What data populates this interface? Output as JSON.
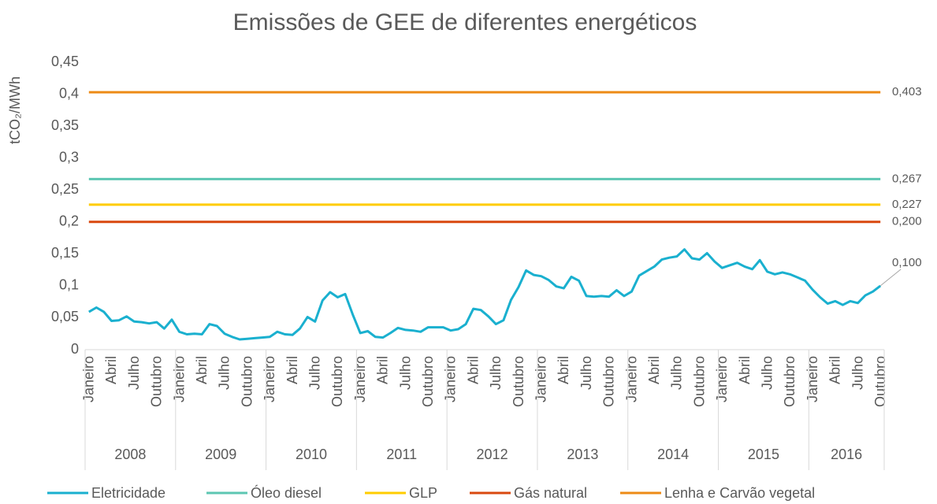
{
  "chart_data": {
    "type": "line",
    "title": "Emissões de GEE de diferentes energéticos",
    "y_label": "tCO₂/MWh",
    "categories": [
      "Janeiro",
      null,
      null,
      "Abril",
      null,
      null,
      "Julho",
      null,
      null,
      "Outubro",
      null,
      null,
      "Janeiro",
      null,
      null,
      "Abril",
      null,
      null,
      "Julho",
      null,
      null,
      "Outubro",
      null,
      null,
      "Janeiro",
      null,
      null,
      "Abril",
      null,
      null,
      "Julho",
      null,
      null,
      "Outubro",
      null,
      null,
      "Janeiro",
      null,
      null,
      "Abril",
      null,
      null,
      "Julho",
      null,
      null,
      "Outubro",
      null,
      null,
      "Janeiro",
      null,
      null,
      "Abril",
      null,
      null,
      "Julho",
      null,
      null,
      "Outubro",
      null,
      null,
      "Janeiro",
      null,
      null,
      "Abril",
      null,
      null,
      "Julho",
      null,
      null,
      "Outubro",
      null,
      null,
      "Janeiro",
      null,
      null,
      "Abril",
      null,
      null,
      "Julho",
      null,
      null,
      "Outubro",
      null,
      null,
      "Janeiro",
      null,
      null,
      "Abril",
      null,
      null,
      "Julho",
      null,
      null,
      "Outubro",
      null,
      null,
      "Janeiro",
      null,
      null,
      "Abril",
      null,
      null,
      "Julho",
      null,
      null,
      "Outubro"
    ],
    "years": [
      "2008",
      "2009",
      "2010",
      "2011",
      "2012",
      "2013",
      "2014",
      "2015",
      "2016"
    ],
    "ylim": [
      0,
      0.45
    ],
    "yticks": [
      0,
      {
        "value": 0.05,
        "label": "0,05"
      },
      {
        "value": 0.1,
        "label": "0,1"
      },
      {
        "value": 0.15,
        "label": "0,15"
      },
      {
        "value": 0.2,
        "label": "0,2"
      },
      {
        "value": 0.25,
        "label": "0,25"
      },
      {
        "value": 0.3,
        "label": "0,3"
      },
      {
        "value": 0.35,
        "label": "0,35"
      },
      {
        "value": 0.4,
        "label": "0,4"
      },
      {
        "value": 0.45,
        "label": "0,45"
      }
    ],
    "legend": "bottom",
    "series": [
      {
        "name": "Eletricidade",
        "color": "#1ab0cf",
        "last_label": "0,100",
        "values": [
          0.059,
          0.066,
          0.059,
          0.045,
          0.046,
          0.052,
          0.044,
          0.043,
          0.041,
          0.043,
          0.033,
          0.047,
          0.028,
          0.024,
          0.025,
          0.024,
          0.04,
          0.037,
          0.025,
          0.02,
          0.016,
          0.017,
          0.018,
          0.019,
          0.02,
          0.028,
          0.024,
          0.023,
          0.033,
          0.051,
          0.044,
          0.077,
          0.09,
          0.082,
          0.087,
          0.055,
          0.026,
          0.029,
          0.02,
          0.019,
          0.026,
          0.034,
          0.031,
          0.03,
          0.028,
          0.035,
          0.035,
          0.035,
          0.03,
          0.032,
          0.04,
          0.064,
          0.062,
          0.052,
          0.04,
          0.046,
          0.078,
          0.098,
          0.124,
          0.117,
          0.115,
          0.109,
          0.099,
          0.096,
          0.114,
          0.108,
          0.084,
          0.083,
          0.084,
          0.083,
          0.093,
          0.084,
          0.091,
          0.116,
          0.123,
          0.13,
          0.141,
          0.144,
          0.146,
          0.157,
          0.143,
          0.141,
          0.151,
          0.138,
          0.128,
          0.132,
          0.136,
          0.13,
          0.126,
          0.14,
          0.122,
          0.118,
          0.121,
          0.118,
          0.113,
          0.108,
          0.094,
          0.082,
          0.072,
          0.076,
          0.07,
          0.076,
          0.073,
          0.085,
          0.091,
          0.1
        ]
      },
      {
        "name": "Óleo diesel",
        "color": "#5cc6b2",
        "last_label": "0,267",
        "values": [
          0.267,
          0.267,
          0.267,
          0.267,
          0.267,
          0.267,
          0.267,
          0.267,
          0.267,
          0.267,
          0.267,
          0.267,
          0.267,
          0.267,
          0.267,
          0.267,
          0.267,
          0.267,
          0.267,
          0.267,
          0.267,
          0.267,
          0.267,
          0.267,
          0.267,
          0.267,
          0.267,
          0.267,
          0.267,
          0.267,
          0.267,
          0.267,
          0.267,
          0.267,
          0.267,
          0.267,
          0.267,
          0.267,
          0.267,
          0.267,
          0.267,
          0.267,
          0.267,
          0.267,
          0.267,
          0.267,
          0.267,
          0.267,
          0.267,
          0.267,
          0.267,
          0.267,
          0.267,
          0.267,
          0.267,
          0.267,
          0.267,
          0.267,
          0.267,
          0.267,
          0.267,
          0.267,
          0.267,
          0.267,
          0.267,
          0.267,
          0.267,
          0.267,
          0.267,
          0.267,
          0.267,
          0.267,
          0.267,
          0.267,
          0.267,
          0.267,
          0.267,
          0.267,
          0.267,
          0.267,
          0.267,
          0.267,
          0.267,
          0.267,
          0.267,
          0.267,
          0.267,
          0.267,
          0.267,
          0.267,
          0.267,
          0.267,
          0.267,
          0.267,
          0.267,
          0.267,
          0.267,
          0.267,
          0.267,
          0.267,
          0.267,
          0.267,
          0.267,
          0.267,
          0.267,
          0.267
        ]
      },
      {
        "name": "GLP",
        "color": "#ffcc00",
        "last_label": "0,227",
        "values": [
          0.227,
          0.227,
          0.227,
          0.227,
          0.227,
          0.227,
          0.227,
          0.227,
          0.227,
          0.227,
          0.227,
          0.227,
          0.227,
          0.227,
          0.227,
          0.227,
          0.227,
          0.227,
          0.227,
          0.227,
          0.227,
          0.227,
          0.227,
          0.227,
          0.227,
          0.227,
          0.227,
          0.227,
          0.227,
          0.227,
          0.227,
          0.227,
          0.227,
          0.227,
          0.227,
          0.227,
          0.227,
          0.227,
          0.227,
          0.227,
          0.227,
          0.227,
          0.227,
          0.227,
          0.227,
          0.227,
          0.227,
          0.227,
          0.227,
          0.227,
          0.227,
          0.227,
          0.227,
          0.227,
          0.227,
          0.227,
          0.227,
          0.227,
          0.227,
          0.227,
          0.227,
          0.227,
          0.227,
          0.227,
          0.227,
          0.227,
          0.227,
          0.227,
          0.227,
          0.227,
          0.227,
          0.227,
          0.227,
          0.227,
          0.227,
          0.227,
          0.227,
          0.227,
          0.227,
          0.227,
          0.227,
          0.227,
          0.227,
          0.227,
          0.227,
          0.227,
          0.227,
          0.227,
          0.227,
          0.227,
          0.227,
          0.227,
          0.227,
          0.227,
          0.227,
          0.227,
          0.227,
          0.227,
          0.227,
          0.227,
          0.227,
          0.227,
          0.227,
          0.227,
          0.227,
          0.227
        ]
      },
      {
        "name": "Gás natural",
        "color": "#d9480f",
        "last_label": "0,200",
        "values": [
          0.2,
          0.2,
          0.2,
          0.2,
          0.2,
          0.2,
          0.2,
          0.2,
          0.2,
          0.2,
          0.2,
          0.2,
          0.2,
          0.2,
          0.2,
          0.2,
          0.2,
          0.2,
          0.2,
          0.2,
          0.2,
          0.2,
          0.2,
          0.2,
          0.2,
          0.2,
          0.2,
          0.2,
          0.2,
          0.2,
          0.2,
          0.2,
          0.2,
          0.2,
          0.2,
          0.2,
          0.2,
          0.2,
          0.2,
          0.2,
          0.2,
          0.2,
          0.2,
          0.2,
          0.2,
          0.2,
          0.2,
          0.2,
          0.2,
          0.2,
          0.2,
          0.2,
          0.2,
          0.2,
          0.2,
          0.2,
          0.2,
          0.2,
          0.2,
          0.2,
          0.2,
          0.2,
          0.2,
          0.2,
          0.2,
          0.2,
          0.2,
          0.2,
          0.2,
          0.2,
          0.2,
          0.2,
          0.2,
          0.2,
          0.2,
          0.2,
          0.2,
          0.2,
          0.2,
          0.2,
          0.2,
          0.2,
          0.2,
          0.2,
          0.2,
          0.2,
          0.2,
          0.2,
          0.2,
          0.2,
          0.2,
          0.2,
          0.2,
          0.2,
          0.2,
          0.2,
          0.2,
          0.2,
          0.2,
          0.2,
          0.2,
          0.2,
          0.2,
          0.2,
          0.2,
          0.2
        ]
      },
      {
        "name": "Lenha e Carvão vegetal",
        "color": "#ed8b16",
        "last_label": "0,403",
        "values": [
          0.403,
          0.403,
          0.403,
          0.403,
          0.403,
          0.403,
          0.403,
          0.403,
          0.403,
          0.403,
          0.403,
          0.403,
          0.403,
          0.403,
          0.403,
          0.403,
          0.403,
          0.403,
          0.403,
          0.403,
          0.403,
          0.403,
          0.403,
          0.403,
          0.403,
          0.403,
          0.403,
          0.403,
          0.403,
          0.403,
          0.403,
          0.403,
          0.403,
          0.403,
          0.403,
          0.403,
          0.403,
          0.403,
          0.403,
          0.403,
          0.403,
          0.403,
          0.403,
          0.403,
          0.403,
          0.403,
          0.403,
          0.403,
          0.403,
          0.403,
          0.403,
          0.403,
          0.403,
          0.403,
          0.403,
          0.403,
          0.403,
          0.403,
          0.403,
          0.403,
          0.403,
          0.403,
          0.403,
          0.403,
          0.403,
          0.403,
          0.403,
          0.403,
          0.403,
          0.403,
          0.403,
          0.403,
          0.403,
          0.403,
          0.403,
          0.403,
          0.403,
          0.403,
          0.403,
          0.403,
          0.403,
          0.403,
          0.403,
          0.403,
          0.403,
          0.403,
          0.403,
          0.403,
          0.403,
          0.403,
          0.403,
          0.403,
          0.403,
          0.403,
          0.403,
          0.403,
          0.403,
          0.403,
          0.403,
          0.403,
          0.403,
          0.403,
          0.403,
          0.403,
          0.403,
          0.403
        ]
      }
    ]
  }
}
